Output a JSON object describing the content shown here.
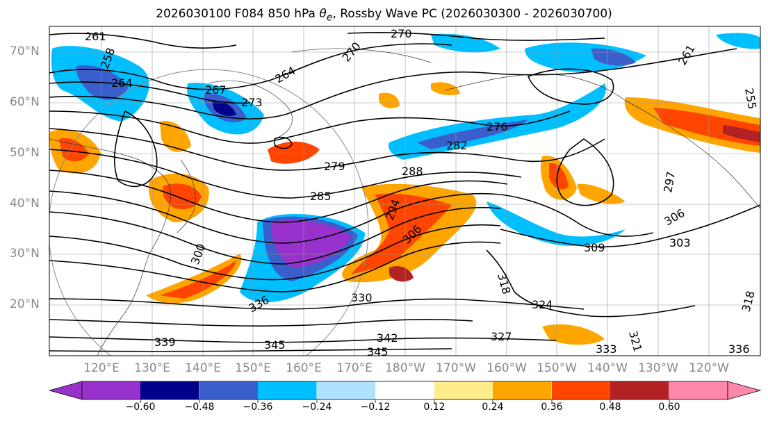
{
  "title": {
    "prefix": "2026030100 F084 850 hPa ",
    "symbol": "θ",
    "subscript": "e",
    "suffix": ", Rossby Wave PC (2026030300 - 2026030700)"
  },
  "lat_labels": [
    "70°N",
    "60°N",
    "50°N",
    "40°N",
    "30°N",
    "20°N"
  ],
  "lon_labels": [
    "120°E",
    "130°E",
    "140°E",
    "150°E",
    "160°E",
    "170°E",
    "180°W",
    "170°W",
    "160°W",
    "150°W",
    "140°W",
    "130°W",
    "120°W"
  ],
  "contour_labels": [
    "261",
    "258",
    "264",
    "267",
    "273",
    "270",
    "270",
    "264",
    "279",
    "282",
    "276",
    "285",
    "288",
    "294",
    "297",
    "300",
    "306",
    "309",
    "303",
    "318",
    "324",
    "327",
    "321",
    "330",
    "333",
    "336",
    "336",
    "339",
    "342",
    "345",
    "345",
    "261",
    "255",
    "306",
    "318"
  ],
  "colorbar": {
    "ticks": [
      "−0.60",
      "−0.48",
      "−0.36",
      "−0.24",
      "−0.12",
      "0.12",
      "0.24",
      "0.36",
      "0.48",
      "0.60"
    ],
    "colors": [
      "#9932CC",
      "#00008B",
      "#3A5FCD",
      "#00BFFF",
      "#B0E2FF",
      "#FFFFFF",
      "#FFEC8B",
      "#FFA500",
      "#FF4500",
      "#B22222",
      "#FF88AA"
    ],
    "extend_low_color": "#9932CC",
    "extend_high_color": "#FF88AA"
  },
  "map": {
    "lat_range": [
      10,
      75
    ],
    "lon_range": [
      110,
      250
    ],
    "grid": true,
    "projection": "cylindrical"
  }
}
